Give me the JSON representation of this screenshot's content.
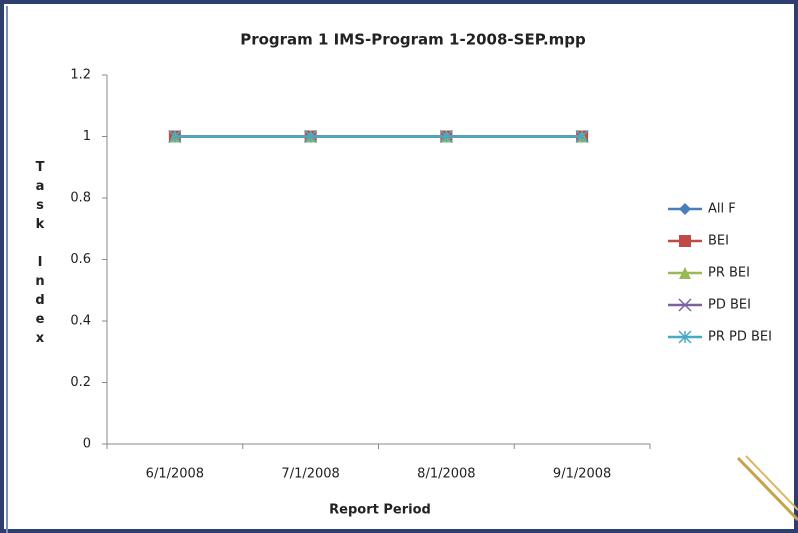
{
  "chart_data": {
    "type": "line",
    "title": "Program 1 IMS-Program 1-2008-SEP.mpp",
    "x_label": "Report Period",
    "y_label": "Task Index",
    "categories": [
      "6/1/2008",
      "7/1/2008",
      "8/1/2008",
      "9/1/2008"
    ],
    "series": [
      {
        "name": "All F",
        "color": "#4a7ebb",
        "marker": "diamond",
        "values": [
          1,
          1,
          1,
          1
        ]
      },
      {
        "name": "BEI",
        "color": "#be4b48",
        "marker": "square",
        "values": [
          1,
          1,
          1,
          1
        ]
      },
      {
        "name": "PR BEI",
        "color": "#98b954",
        "marker": "triangle",
        "values": [
          1,
          1,
          1,
          1
        ]
      },
      {
        "name": "PD BEI",
        "color": "#7d60a0",
        "marker": "x",
        "values": [
          1,
          1,
          1,
          1
        ]
      },
      {
        "name": "PR PD BEI",
        "color": "#46aac5",
        "marker": "star",
        "values": [
          1,
          1,
          1,
          1
        ]
      }
    ],
    "ylim": [
      0,
      1.2
    ],
    "yticks": [
      0,
      0.2,
      0.4,
      0.6,
      0.8,
      1,
      1.2
    ],
    "legend": "right"
  }
}
